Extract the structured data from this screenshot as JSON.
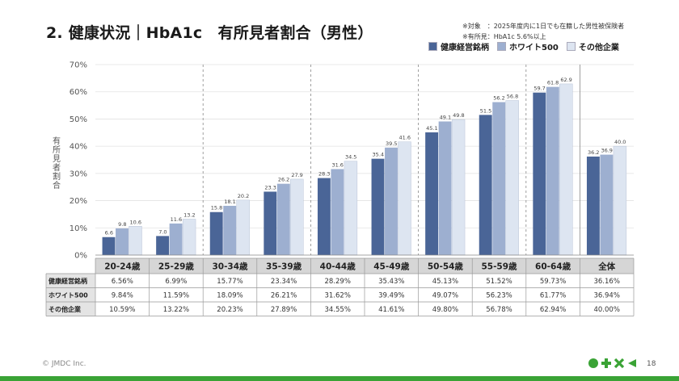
{
  "page": {
    "title": "2. 健康状況｜HbA1c　有所見者割合（男性）",
    "notes": [
      "※対象　：2025年度内に1日でも在籍した男性被保険者",
      "※有所見：HbA1c 5.6%以上"
    ],
    "footer": "© JMDC Inc.",
    "page_number": "18"
  },
  "colors": {
    "s1": "#4a6597",
    "s2": "#9dafd0",
    "s3": "#dde5f1"
  },
  "chart_data": {
    "type": "bar",
    "categories": [
      "20-24歳",
      "25-29歳",
      "30-34歳",
      "35-39歳",
      "40-44歳",
      "45-49歳",
      "50-54歳",
      "55-59歳",
      "60-64歳",
      "全体"
    ],
    "series": [
      {
        "name": "健康経営銘柄",
        "values": [
          6.6,
          7.0,
          15.8,
          23.3,
          28.3,
          35.4,
          45.1,
          51.5,
          59.7,
          36.2
        ]
      },
      {
        "name": "ホワイト500",
        "values": [
          9.8,
          11.6,
          18.1,
          26.2,
          31.6,
          39.5,
          49.1,
          56.2,
          61.8,
          36.9
        ]
      },
      {
        "name": "その他企業",
        "values": [
          10.6,
          13.2,
          20.2,
          27.9,
          34.5,
          41.6,
          49.8,
          56.8,
          62.9,
          40.0
        ]
      }
    ],
    "ylabel": "有所見者割合",
    "ylim": [
      0,
      70
    ],
    "yticks": [
      "0%",
      "10%",
      "20%",
      "30%",
      "40%",
      "50%",
      "60%",
      "70%"
    ],
    "table": {
      "rows": [
        {
          "label": "健康経営銘柄",
          "values": [
            "6.56%",
            "6.99%",
            "15.77%",
            "23.34%",
            "28.29%",
            "35.43%",
            "45.13%",
            "51.52%",
            "59.73%",
            "36.16%"
          ]
        },
        {
          "label": "ホワイト500",
          "values": [
            "9.84%",
            "11.59%",
            "18.09%",
            "26.21%",
            "31.62%",
            "39.49%",
            "49.07%",
            "56.23%",
            "61.77%",
            "36.94%"
          ]
        },
        {
          "label": "その他企業",
          "values": [
            "10.59%",
            "13.22%",
            "20.23%",
            "27.89%",
            "34.55%",
            "41.61%",
            "49.80%",
            "56.78%",
            "62.94%",
            "40.00%"
          ]
        }
      ]
    }
  }
}
